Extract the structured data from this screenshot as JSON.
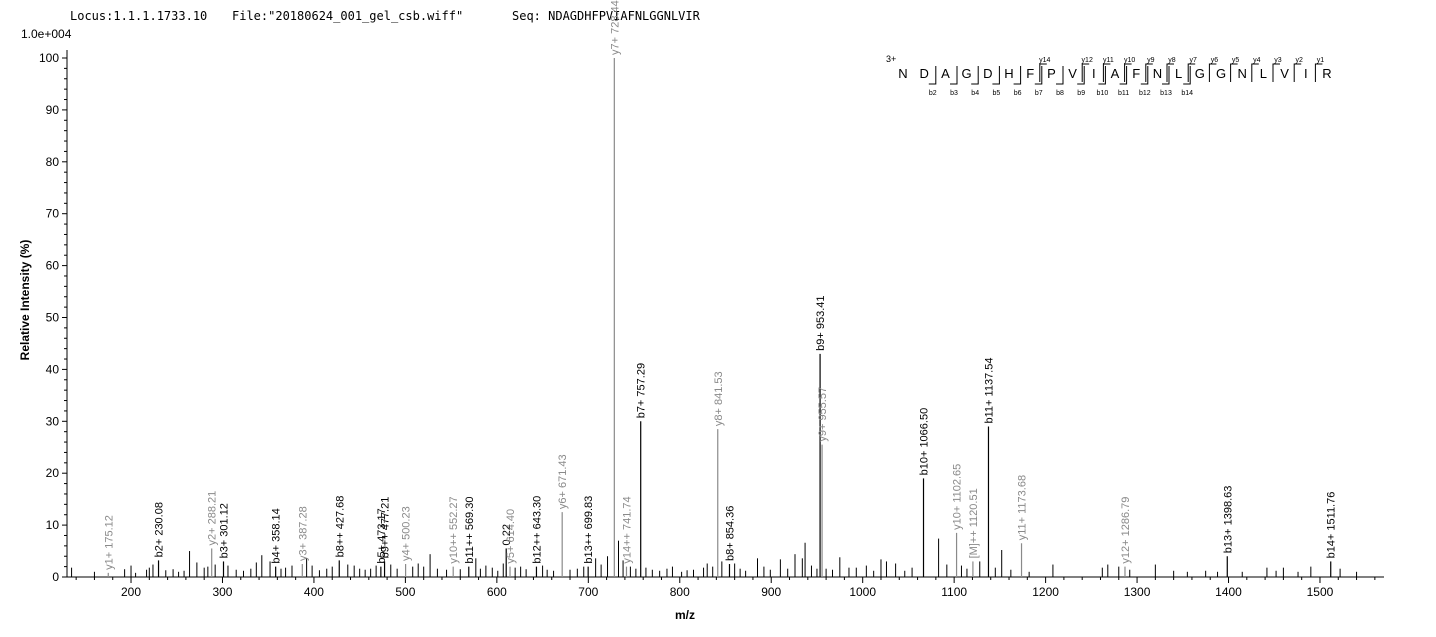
{
  "header": {
    "locus": "Locus:1.1.1.1733.10",
    "file": "File:\"20180624_001_gel_csb.wiff\"",
    "seq": "Seq: NDAGDHFPVIAFNLGGNLVIR"
  },
  "chart_data": {
    "type": "bar",
    "subtype": "mass-spectrum",
    "scale_label": "1.0e+004",
    "xlabel": "m/z",
    "ylabel": "Relative   Intensity (%)",
    "xlim": [
      130,
      1570
    ],
    "ylim": [
      0,
      100
    ],
    "xticks": [
      200,
      300,
      400,
      500,
      600,
      700,
      800,
      900,
      1000,
      1100,
      1200,
      1300,
      1400,
      1500
    ],
    "yticks": [
      0,
      10,
      20,
      30,
      40,
      50,
      60,
      70,
      80,
      90,
      100
    ],
    "annotated_peaks": [
      {
        "mz": 175.12,
        "intensity": 0.8,
        "label": "y1+ 175.12",
        "ion": "y"
      },
      {
        "mz": 230.08,
        "intensity": 3.2,
        "label": "b2+ 230.08",
        "ion": "b"
      },
      {
        "mz": 288.21,
        "intensity": 5.5,
        "label": "y2+ 288.21",
        "ion": "y"
      },
      {
        "mz": 301.12,
        "intensity": 3.0,
        "label": "b3+ 301.12",
        "ion": "b"
      },
      {
        "mz": 358.14,
        "intensity": 2.0,
        "label": "b4+ 358.14",
        "ion": "b"
      },
      {
        "mz": 387.28,
        "intensity": 2.5,
        "label": "y3+ 387.28",
        "ion": "y"
      },
      {
        "mz": 427.68,
        "intensity": 3.2,
        "label": "b8++ 427.68",
        "ion": "b"
      },
      {
        "mz": 473.17,
        "intensity": 2.0,
        "label": "b5+ 473.17",
        "ion": "b"
      },
      {
        "mz": 477.21,
        "intensity": 3.0,
        "label": "b9++ 477.21",
        "ion": "b"
      },
      {
        "mz": 500.23,
        "intensity": 2.5,
        "label": "y4+ 500.23",
        "ion": "y"
      },
      {
        "mz": 552.27,
        "intensity": 2.0,
        "label": "y10++ 552.27",
        "ion": "y"
      },
      {
        "mz": 569.3,
        "intensity": 2.0,
        "label": "b11++ 569.30",
        "ion": "b"
      },
      {
        "mz": 610.22,
        "intensity": 5.5,
        "label": "0.22",
        "ion": "b"
      },
      {
        "mz": 614.4,
        "intensity": 2.0,
        "label": "y5+ 614.40",
        "ion": "y"
      },
      {
        "mz": 643.3,
        "intensity": 2.0,
        "label": "b12++ 643.30",
        "ion": "b"
      },
      {
        "mz": 671.43,
        "intensity": 12.5,
        "label": "y6+ 671.43",
        "ion": "y"
      },
      {
        "mz": 699.83,
        "intensity": 2.0,
        "label": "b13++ 699.83",
        "ion": "b"
      },
      {
        "mz": 728.44,
        "intensity": 100.0,
        "label": "y7+ 728.44",
        "ion": "y"
      },
      {
        "mz": 741.74,
        "intensity": 2.0,
        "label": "y14++ 741.74",
        "ion": "y"
      },
      {
        "mz": 757.29,
        "intensity": 30.0,
        "label": "b7+ 757.29",
        "ion": "b"
      },
      {
        "mz": 841.53,
        "intensity": 28.5,
        "label": "y8+ 841.53",
        "ion": "y"
      },
      {
        "mz": 854.36,
        "intensity": 2.5,
        "label": "b8+ 854.36",
        "ion": "b"
      },
      {
        "mz": 953.41,
        "intensity": 43.0,
        "label": "b9+ 953.41",
        "ion": "b"
      },
      {
        "mz": 955.57,
        "intensity": 25.5,
        "label": "y9+ 955.57",
        "ion": "y"
      },
      {
        "mz": 1066.5,
        "intensity": 19.0,
        "label": "b10+ 1066.50",
        "ion": "b"
      },
      {
        "mz": 1102.65,
        "intensity": 8.5,
        "label": "y10+ 1102.65",
        "ion": "y"
      },
      {
        "mz": 1120.51,
        "intensity": 3.0,
        "label": "[M]++ 1120.51",
        "ion": "y"
      },
      {
        "mz": 1137.54,
        "intensity": 29.0,
        "label": "b11+ 1137.54",
        "ion": "b"
      },
      {
        "mz": 1173.68,
        "intensity": 6.5,
        "label": "y11+ 1173.68",
        "ion": "y"
      },
      {
        "mz": 1286.79,
        "intensity": 2.0,
        "label": "y12+ 1286.79",
        "ion": "y"
      },
      {
        "mz": 1398.63,
        "intensity": 4.0,
        "label": "b13+ 1398.63",
        "ion": "b"
      },
      {
        "mz": 1511.76,
        "intensity": 3.0,
        "label": "b14+ 1511.76",
        "ion": "b"
      }
    ],
    "background_peaks": [
      [
        135,
        1.8
      ],
      [
        160,
        1.0
      ],
      [
        193,
        1.5
      ],
      [
        200,
        2.2
      ],
      [
        205,
        0.8
      ],
      [
        217,
        1.4
      ],
      [
        220,
        1.8
      ],
      [
        224,
        2.4
      ],
      [
        238,
        1.3
      ],
      [
        246,
        1.5
      ],
      [
        252,
        1.0
      ],
      [
        258,
        1.2
      ],
      [
        264,
        5.0
      ],
      [
        272,
        2.8
      ],
      [
        280,
        1.8
      ],
      [
        284,
        2.0
      ],
      [
        292,
        2.4
      ],
      [
        306,
        2.2
      ],
      [
        315,
        1.4
      ],
      [
        323,
        1.2
      ],
      [
        331,
        1.6
      ],
      [
        337,
        2.8
      ],
      [
        343,
        4.2
      ],
      [
        352,
        3.0
      ],
      [
        364,
        1.6
      ],
      [
        369,
        1.8
      ],
      [
        376,
        2.2
      ],
      [
        392,
        3.6
      ],
      [
        398,
        2.2
      ],
      [
        406,
        1.3
      ],
      [
        414,
        1.6
      ],
      [
        420,
        2.0
      ],
      [
        437,
        2.4
      ],
      [
        444,
        2.2
      ],
      [
        450,
        1.6
      ],
      [
        456,
        1.4
      ],
      [
        462,
        1.6
      ],
      [
        468,
        2.2
      ],
      [
        484,
        2.4
      ],
      [
        491,
        1.6
      ],
      [
        508,
        2.0
      ],
      [
        514,
        2.6
      ],
      [
        520,
        2.0
      ],
      [
        527,
        4.4
      ],
      [
        535,
        1.6
      ],
      [
        545,
        1.4
      ],
      [
        560,
        1.5
      ],
      [
        577,
        3.6
      ],
      [
        582,
        1.6
      ],
      [
        588,
        2.2
      ],
      [
        595,
        1.8
      ],
      [
        601,
        1.2
      ],
      [
        607,
        2.6
      ],
      [
        620,
        1.8
      ],
      [
        626,
        2.0
      ],
      [
        632,
        1.5
      ],
      [
        650,
        2.2
      ],
      [
        655,
        1.4
      ],
      [
        662,
        1.2
      ],
      [
        680,
        1.4
      ],
      [
        688,
        1.6
      ],
      [
        695,
        2.0
      ],
      [
        708,
        3.6
      ],
      [
        714,
        2.4
      ],
      [
        721,
        4.0
      ],
      [
        733,
        7.0
      ],
      [
        738,
        3.2
      ],
      [
        746,
        2.0
      ],
      [
        752,
        1.6
      ],
      [
        763,
        1.8
      ],
      [
        770,
        1.4
      ],
      [
        778,
        1.2
      ],
      [
        786,
        1.6
      ],
      [
        792,
        2.0
      ],
      [
        802,
        1.0
      ],
      [
        808,
        1.3
      ],
      [
        815,
        1.4
      ],
      [
        826,
        1.8
      ],
      [
        830,
        2.6
      ],
      [
        836,
        2.0
      ],
      [
        846,
        3.0
      ],
      [
        860,
        2.6
      ],
      [
        866,
        1.6
      ],
      [
        872,
        1.2
      ],
      [
        885,
        3.6
      ],
      [
        892,
        2.0
      ],
      [
        899,
        1.4
      ],
      [
        910,
        3.4
      ],
      [
        918,
        1.6
      ],
      [
        926,
        4.4
      ],
      [
        934,
        3.6
      ],
      [
        937,
        6.6
      ],
      [
        944,
        2.2
      ],
      [
        950,
        1.6
      ],
      [
        960,
        1.6
      ],
      [
        967,
        1.4
      ],
      [
        975,
        3.8
      ],
      [
        985,
        1.8
      ],
      [
        993,
        1.8
      ],
      [
        1004,
        2.2
      ],
      [
        1012,
        1.2
      ],
      [
        1020,
        3.4
      ],
      [
        1026,
        3.0
      ],
      [
        1036,
        2.6
      ],
      [
        1046,
        1.2
      ],
      [
        1054,
        1.8
      ],
      [
        1083,
        7.4
      ],
      [
        1092,
        2.4
      ],
      [
        1108,
        2.2
      ],
      [
        1114,
        1.6
      ],
      [
        1128,
        3.0
      ],
      [
        1145,
        1.8
      ],
      [
        1152,
        5.2
      ],
      [
        1162,
        1.4
      ],
      [
        1182,
        1.0
      ],
      [
        1208,
        2.4
      ],
      [
        1262,
        1.8
      ],
      [
        1268,
        2.4
      ],
      [
        1280,
        2.0
      ],
      [
        1292,
        1.4
      ],
      [
        1320,
        2.4
      ],
      [
        1340,
        1.2
      ],
      [
        1355,
        1.0
      ],
      [
        1375,
        1.2
      ],
      [
        1388,
        1.0
      ],
      [
        1415,
        1.0
      ],
      [
        1442,
        1.8
      ],
      [
        1452,
        1.2
      ],
      [
        1460,
        1.8
      ],
      [
        1476,
        1.0
      ],
      [
        1490,
        2.0
      ],
      [
        1522,
        1.6
      ],
      [
        1540,
        1.0
      ]
    ]
  },
  "sequence_map": {
    "charge": "3+",
    "residues": [
      "N",
      "D",
      "A",
      "G",
      "D",
      "H",
      "F",
      "P",
      "V",
      "I",
      "A",
      "F",
      "N",
      "L",
      "G",
      "G",
      "N",
      "L",
      "V",
      "I",
      "R"
    ],
    "b_ions": [
      {
        "after": 2,
        "label": "b2"
      },
      {
        "after": 3,
        "label": "b3"
      },
      {
        "after": 4,
        "label": "b4"
      },
      {
        "after": 5,
        "label": "b5"
      },
      {
        "after": 6,
        "label": "b6"
      },
      {
        "after": 7,
        "label": "b7"
      },
      {
        "after": 8,
        "label": "b8"
      },
      {
        "after": 9,
        "label": "b9"
      },
      {
        "after": 10,
        "label": "b10"
      },
      {
        "after": 11,
        "label": "b11"
      },
      {
        "after": 12,
        "label": "b12"
      },
      {
        "after": 13,
        "label": "b13"
      },
      {
        "after": 14,
        "label": "b14"
      }
    ],
    "y_ions": [
      {
        "after": 7,
        "label": "y14"
      },
      {
        "after": 9,
        "label": "y12"
      },
      {
        "after": 10,
        "label": "y11"
      },
      {
        "after": 11,
        "label": "y10"
      },
      {
        "after": 12,
        "label": "y9"
      },
      {
        "after": 13,
        "label": "y8"
      },
      {
        "after": 14,
        "label": "y7"
      },
      {
        "after": 15,
        "label": "y6"
      },
      {
        "after": 16,
        "label": "y5"
      },
      {
        "after": 17,
        "label": "y4"
      },
      {
        "after": 18,
        "label": "y3"
      },
      {
        "after": 19,
        "label": "y2"
      },
      {
        "after": 20,
        "label": "y1"
      }
    ]
  },
  "colors": {
    "b_ion": "#000000",
    "y_ion": "#8a8a8a",
    "background_peak": "#000000",
    "axis": "#000000"
  }
}
